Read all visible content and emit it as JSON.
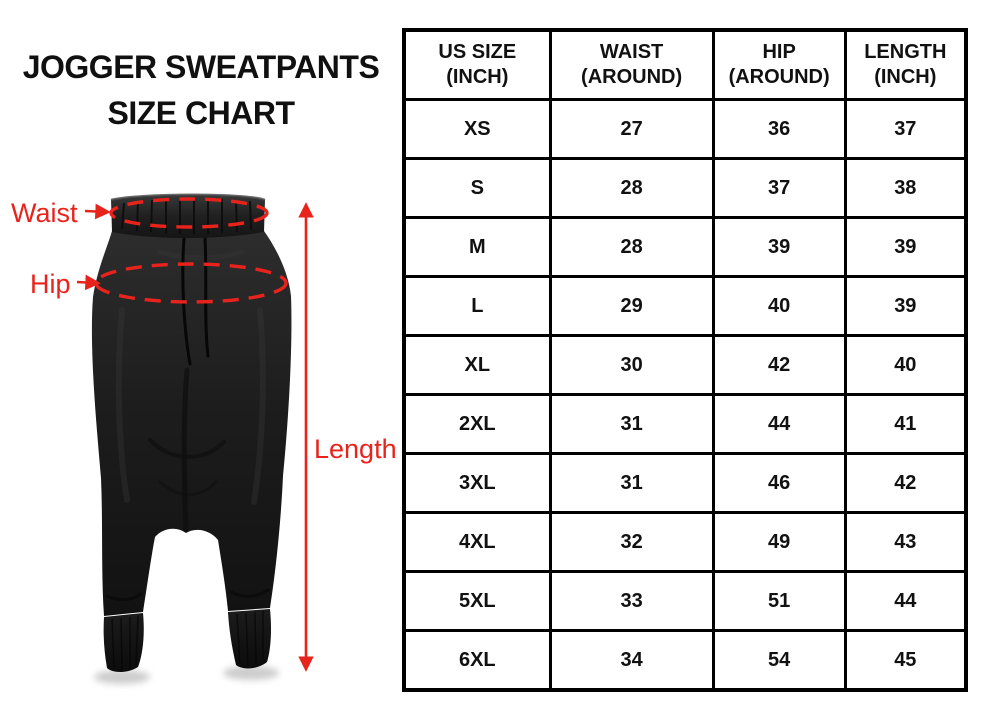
{
  "page": {
    "title_line1": "JOGGER SWEATPANTS",
    "title_line2": "SIZE CHART"
  },
  "diagram": {
    "garment": "black-jogger-sweatpants-front-view",
    "annotation_color": "#e8231c",
    "labels": {
      "waist": "Waist",
      "hip": "Hip",
      "length": "Length"
    }
  },
  "chart_data": {
    "type": "table",
    "title": "JOGGER SWEATPANTS SIZE CHART",
    "columns": [
      "US SIZE (INCH)",
      "WAIST (AROUND)",
      "HIP (AROUND)",
      "LENGTH (INCH)"
    ],
    "columns_display": [
      "US SIZE\n(INCH)",
      "WAIST\n(AROUND)",
      "HIP\n(AROUND)",
      "LENGTH\n(INCH)"
    ],
    "rows": [
      [
        "XS",
        27,
        36,
        37
      ],
      [
        "S",
        28,
        37,
        38
      ],
      [
        "M",
        28,
        39,
        39
      ],
      [
        "L",
        29,
        40,
        39
      ],
      [
        "XL",
        30,
        42,
        40
      ],
      [
        "2XL",
        31,
        44,
        41
      ],
      [
        "3XL",
        31,
        46,
        42
      ],
      [
        "4XL",
        32,
        49,
        43
      ],
      [
        "5XL",
        33,
        51,
        44
      ],
      [
        "6XL",
        34,
        54,
        45
      ]
    ]
  }
}
